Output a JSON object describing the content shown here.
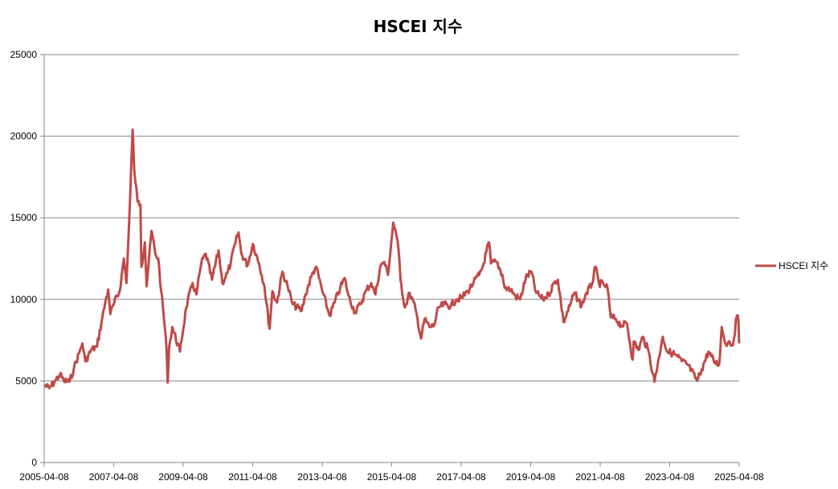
{
  "chart_data": {
    "type": "line",
    "title": "HSCEI 지수",
    "xlabel": "",
    "ylabel": "",
    "ylim": [
      0,
      25000
    ],
    "yticks": [
      0,
      5000,
      10000,
      15000,
      20000,
      25000
    ],
    "xlim": [
      "2005-04-08",
      "2025-04-08"
    ],
    "xticks": [
      "2005-04-08",
      "2007-04-08",
      "2009-04-08",
      "2011-04-08",
      "2013-04-08",
      "2015-04-08",
      "2017-04-08",
      "2019-04-08",
      "2021-04-08",
      "2023-04-08",
      "2025-04-08"
    ],
    "grid": true,
    "legend": "right",
    "colors": {
      "series": "#be4b48",
      "grid": "#868686",
      "axis": "#868686"
    },
    "series": [
      {
        "name": "HSCEI 지수",
        "points": [
          [
            "2005-04-08",
            4750
          ],
          [
            "2005-06-01",
            4550
          ],
          [
            "2005-08-01",
            5000
          ],
          [
            "2005-09-20",
            5400
          ],
          [
            "2005-11-01",
            5000
          ],
          [
            "2006-01-01",
            4950
          ],
          [
            "2006-02-15",
            5800
          ],
          [
            "2006-04-10",
            6700
          ],
          [
            "2006-05-15",
            7300
          ],
          [
            "2006-06-15",
            6200
          ],
          [
            "2006-08-15",
            6900
          ],
          [
            "2006-10-15",
            7100
          ],
          [
            "2006-12-01",
            8600
          ],
          [
            "2007-01-10",
            9800
          ],
          [
            "2007-02-10",
            10600
          ],
          [
            "2007-03-05",
            9100
          ],
          [
            "2007-04-15",
            9800
          ],
          [
            "2007-06-10",
            10500
          ],
          [
            "2007-07-25",
            12500
          ],
          [
            "2007-08-20",
            11000
          ],
          [
            "2007-09-20",
            15000
          ],
          [
            "2007-10-25",
            20400
          ],
          [
            "2007-11-10",
            18000
          ],
          [
            "2007-12-15",
            16000
          ],
          [
            "2008-01-15",
            15800
          ],
          [
            "2008-01-25",
            12000
          ],
          [
            "2008-03-01",
            13500
          ],
          [
            "2008-03-20",
            10800
          ],
          [
            "2008-05-10",
            14200
          ],
          [
            "2008-06-20",
            12800
          ],
          [
            "2008-07-20",
            12500
          ],
          [
            "2008-08-20",
            10500
          ],
          [
            "2008-10-10",
            7500
          ],
          [
            "2008-10-27",
            4900
          ],
          [
            "2008-11-10",
            7000
          ],
          [
            "2008-12-15",
            8300
          ],
          [
            "2009-03-05",
            6800
          ],
          [
            "2009-05-10",
            9500
          ],
          [
            "2009-07-15",
            11000
          ],
          [
            "2009-08-25",
            10300
          ],
          [
            "2009-10-15",
            12200
          ],
          [
            "2009-12-01",
            12800
          ],
          [
            "2010-02-05",
            11200
          ],
          [
            "2010-04-15",
            13000
          ],
          [
            "2010-05-25",
            11000
          ],
          [
            "2010-07-15",
            11600
          ],
          [
            "2010-08-20",
            12200
          ],
          [
            "2010-10-10",
            13500
          ],
          [
            "2010-11-10",
            14100
          ],
          [
            "2010-12-10",
            12800
          ],
          [
            "2011-02-15",
            12100
          ],
          [
            "2011-04-10",
            13400
          ],
          [
            "2011-06-15",
            12200
          ],
          [
            "2011-08-10",
            10800
          ],
          [
            "2011-10-04",
            8200
          ],
          [
            "2011-11-01",
            10500
          ],
          [
            "2011-12-20",
            9800
          ],
          [
            "2012-02-15",
            11700
          ],
          [
            "2012-04-10",
            10800
          ],
          [
            "2012-06-01",
            9700
          ],
          [
            "2012-09-05",
            9300
          ],
          [
            "2012-10-15",
            10300
          ],
          [
            "2012-12-15",
            11400
          ],
          [
            "2013-02-01",
            12000
          ],
          [
            "2013-04-15",
            10400
          ],
          [
            "2013-06-25",
            9000
          ],
          [
            "2013-08-15",
            9800
          ],
          [
            "2013-10-15",
            10700
          ],
          [
            "2013-12-01",
            11300
          ],
          [
            "2014-01-10",
            10200
          ],
          [
            "2014-03-20",
            9200
          ],
          [
            "2014-05-15",
            9700
          ],
          [
            "2014-07-20",
            10600
          ],
          [
            "2014-09-05",
            11000
          ],
          [
            "2014-10-20",
            10300
          ],
          [
            "2014-12-10",
            12000
          ],
          [
            "2015-01-20",
            12300
          ],
          [
            "2015-03-01",
            11500
          ],
          [
            "2015-04-25",
            14700
          ],
          [
            "2015-05-20",
            14200
          ],
          [
            "2015-06-20",
            13000
          ],
          [
            "2015-07-10",
            11200
          ],
          [
            "2015-08-25",
            9500
          ],
          [
            "2015-10-15",
            10400
          ],
          [
            "2015-12-15",
            9400
          ],
          [
            "2016-02-12",
            7600
          ],
          [
            "2016-03-20",
            8800
          ],
          [
            "2016-05-10",
            8300
          ],
          [
            "2016-06-27",
            8400
          ],
          [
            "2016-08-15",
            9500
          ],
          [
            "2016-10-15",
            9700
          ],
          [
            "2016-12-20",
            9600
          ],
          [
            "2017-02-15",
            10000
          ],
          [
            "2017-04-15",
            10100
          ],
          [
            "2017-06-15",
            10500
          ],
          [
            "2017-08-15",
            11000
          ],
          [
            "2017-10-15",
            11500
          ],
          [
            "2017-11-20",
            12000
          ],
          [
            "2018-01-26",
            13500
          ],
          [
            "2018-02-15",
            12200
          ],
          [
            "2018-04-15",
            12300
          ],
          [
            "2018-06-15",
            11500
          ],
          [
            "2018-07-10",
            10700
          ],
          [
            "2018-09-10",
            10600
          ],
          [
            "2018-10-30",
            10200
          ],
          [
            "2018-12-20",
            10000
          ],
          [
            "2019-02-15",
            11300
          ],
          [
            "2019-04-15",
            11700
          ],
          [
            "2019-06-05",
            10400
          ],
          [
            "2019-08-15",
            10000
          ],
          [
            "2019-10-15",
            10300
          ],
          [
            "2019-12-20",
            11100
          ],
          [
            "2020-01-20",
            11200
          ],
          [
            "2020-03-19",
            8600
          ],
          [
            "2020-05-25",
            9600
          ],
          [
            "2020-07-10",
            10400
          ],
          [
            "2020-09-25",
            9600
          ],
          [
            "2020-11-15",
            10400
          ],
          [
            "2021-01-10",
            10900
          ],
          [
            "2021-02-17",
            12000
          ],
          [
            "2021-03-25",
            11000
          ],
          [
            "2021-05-15",
            10900
          ],
          [
            "2021-06-25",
            10700
          ],
          [
            "2021-07-28",
            8900
          ],
          [
            "2021-09-20",
            8800
          ],
          [
            "2021-11-15",
            8400
          ],
          [
            "2022-01-15",
            8500
          ],
          [
            "2022-03-15",
            6300
          ],
          [
            "2022-03-25",
            7400
          ],
          [
            "2022-05-15",
            6900
          ],
          [
            "2022-06-30",
            7700
          ],
          [
            "2022-08-30",
            6800
          ],
          [
            "2022-10-31",
            4950
          ],
          [
            "2022-12-15",
            6400
          ],
          [
            "2023-01-27",
            7700
          ],
          [
            "2023-03-15",
            6800
          ],
          [
            "2023-05-10",
            6700
          ],
          [
            "2023-06-30",
            6500
          ],
          [
            "2023-08-15",
            6200
          ],
          [
            "2023-10-15",
            6000
          ],
          [
            "2024-01-22",
            5000
          ],
          [
            "2024-03-10",
            5700
          ],
          [
            "2024-05-20",
            6800
          ],
          [
            "2024-07-15",
            6200
          ],
          [
            "2024-09-10",
            6000
          ],
          [
            "2024-10-07",
            8300
          ],
          [
            "2024-11-15",
            7300
          ],
          [
            "2024-12-30",
            7400
          ],
          [
            "2025-02-01",
            7200
          ],
          [
            "2025-03-15",
            9000
          ],
          [
            "2025-03-31",
            8700
          ],
          [
            "2025-04-08",
            7300
          ]
        ]
      }
    ]
  }
}
